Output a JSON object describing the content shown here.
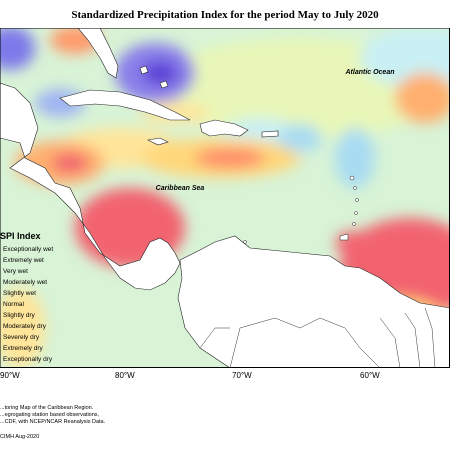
{
  "title": "Standardized Precipitation Index for the period May to July 2020",
  "labels": {
    "atlantic": "Atlantic Ocean",
    "caribbean": "Caribbean Sea"
  },
  "longitudes": [
    "90°W",
    "80°W",
    "70°W",
    "60°W"
  ],
  "legend": {
    "title": "SPI Index",
    "items": [
      {
        "label": "Exceptionally wet",
        "color": "#5a3fd6"
      },
      {
        "label": "Extremely wet",
        "color": "#7d79ea"
      },
      {
        "label": "Very wet",
        "color": "#9fb4f3"
      },
      {
        "label": "Moderately wet",
        "color": "#a9dcf2"
      },
      {
        "label": "Slightly wet",
        "color": "#c9f0f4"
      },
      {
        "label": "Normal",
        "color": "#ecf8c8"
      },
      {
        "label": "Slightly dry",
        "color": "#fff3a0"
      },
      {
        "label": "Moderately dry",
        "color": "#ffd77a"
      },
      {
        "label": "Severely dry",
        "color": "#ffb070"
      },
      {
        "label": "Extremely dry",
        "color": "#ff8a6a"
      },
      {
        "label": "Exceptionally dry",
        "color": "#f26470"
      }
    ]
  },
  "credits": [
    "...toring Map of the Caribbean Region.",
    "...egrogating station based observations,",
    "...CDF, with NCEP/NCAR Reanalysis Data."
  ],
  "footer": "CIMH Aug-2020"
}
